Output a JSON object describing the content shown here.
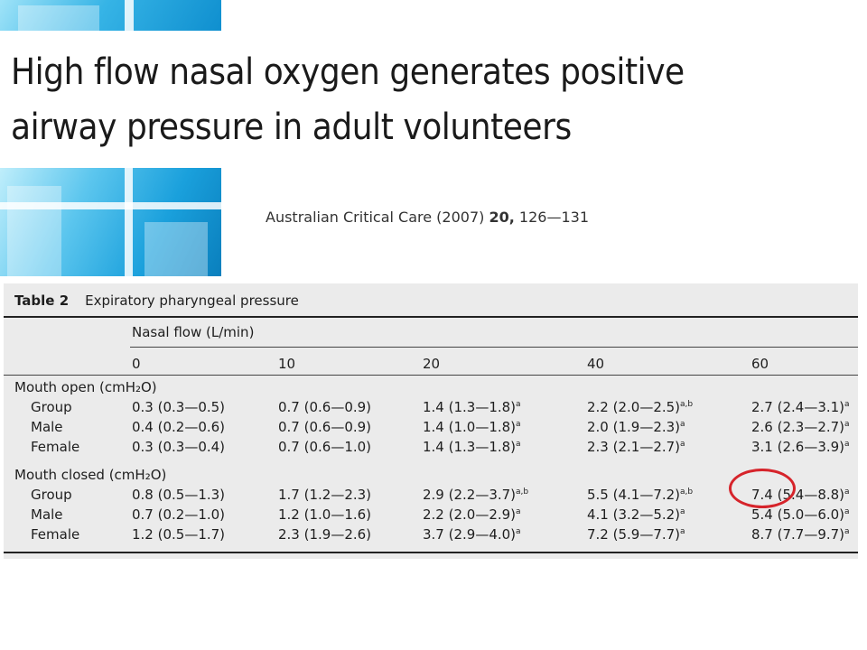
{
  "title": "High flow nasal oxygen generates positive airway pressure in adult volunteers",
  "citation": {
    "journal": "Australian Critical Care (2007)",
    "volume": "20,",
    "pages": "126—131"
  },
  "table": {
    "label": "Table 2",
    "caption": "Expiratory pharyngeal pressure",
    "flow_header": "Nasal flow (L/min)",
    "columns": [
      "0",
      "10",
      "20",
      "40",
      "60"
    ],
    "groups": [
      {
        "label": "Mouth open (cmH₂O)",
        "rows": [
          {
            "label": "Group",
            "cells": [
              {
                "v": "0.3 (0.3—0.5)",
                "s": ""
              },
              {
                "v": "0.7 (0.6—0.9)",
                "s": ""
              },
              {
                "v": "1.4 (1.3—1.8)",
                "s": "a"
              },
              {
                "v": "2.2 (2.0—2.5)",
                "s": "a,b"
              },
              {
                "v": "2.7 (2.4—3.1)",
                "s": "a"
              }
            ]
          },
          {
            "label": "Male",
            "cells": [
              {
                "v": "0.4 (0.2—0.6)",
                "s": ""
              },
              {
                "v": "0.7 (0.6—0.9)",
                "s": ""
              },
              {
                "v": "1.4 (1.0—1.8)",
                "s": "a"
              },
              {
                "v": "2.0 (1.9—2.3)",
                "s": "a"
              },
              {
                "v": "2.6 (2.3—2.7)",
                "s": "a"
              }
            ]
          },
          {
            "label": "Female",
            "cells": [
              {
                "v": "0.3 (0.3—0.4)",
                "s": ""
              },
              {
                "v": "0.7 (0.6—1.0)",
                "s": ""
              },
              {
                "v": "1.4 (1.3—1.8)",
                "s": "a"
              },
              {
                "v": "2.3 (2.1—2.7)",
                "s": "a"
              },
              {
                "v": "3.1 (2.6—3.9)",
                "s": "a"
              }
            ]
          }
        ]
      },
      {
        "label": "Mouth closed (cmH₂O)",
        "rows": [
          {
            "label": "Group",
            "cells": [
              {
                "v": "0.8 (0.5—1.3)",
                "s": ""
              },
              {
                "v": "1.7 (1.2—2.3)",
                "s": ""
              },
              {
                "v": "2.9 (2.2—3.7)",
                "s": "a,b"
              },
              {
                "v": "5.5 (4.1—7.2)",
                "s": "a,b"
              },
              {
                "v": "7.4 (5.4—8.8)",
                "s": "a"
              }
            ]
          },
          {
            "label": "Male",
            "cells": [
              {
                "v": "0.7 (0.2—1.0)",
                "s": ""
              },
              {
                "v": "1.2 (1.0—1.6)",
                "s": ""
              },
              {
                "v": "2.2 (2.0—2.9)",
                "s": "a"
              },
              {
                "v": "4.1 (3.2—5.2)",
                "s": "a"
              },
              {
                "v": "5.4 (5.0—6.0)",
                "s": "a"
              }
            ]
          },
          {
            "label": "Female",
            "cells": [
              {
                "v": "1.2 (0.5—1.7)",
                "s": ""
              },
              {
                "v": "2.3 (1.9—2.6)",
                "s": ""
              },
              {
                "v": "3.7 (2.9—4.0)",
                "s": "a"
              },
              {
                "v": "7.2 (5.9—7.7)",
                "s": "a"
              },
              {
                "v": "8.7 (7.7—9.7)",
                "s": "a"
              }
            ]
          }
        ]
      }
    ]
  },
  "colors": {
    "highlight": "#d6242b",
    "table_background": "#ebebeb",
    "tile_blue": "#1aa0dc"
  }
}
